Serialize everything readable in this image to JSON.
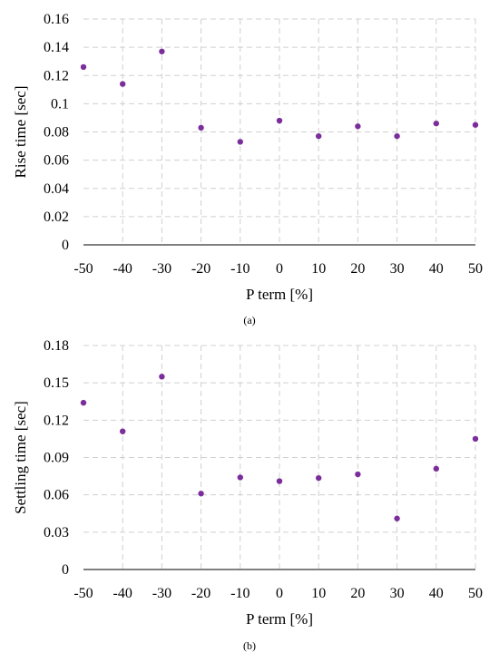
{
  "chart_data": [
    {
      "type": "scatter",
      "caption": "(a)",
      "xlabel": "P term [%]",
      "ylabel": "Rise time [sec]",
      "xlim": [
        -50,
        50
      ],
      "ylim": [
        0,
        0.16
      ],
      "x_ticks": [
        "-50",
        "-40",
        "-30",
        "-20",
        "-10",
        "0",
        "10",
        "20",
        "30",
        "40",
        "50"
      ],
      "y_ticks": [
        "0",
        "0.02",
        "0.04",
        "0.06",
        "0.08",
        "0.1",
        "0.12",
        "0.14",
        "0.16"
      ],
      "grid": true,
      "marker_color": "#7B2D9B",
      "x": [
        -50,
        -40,
        -30,
        -20,
        -10,
        0,
        10,
        20,
        30,
        40,
        50
      ],
      "y": [
        0.126,
        0.114,
        0.137,
        0.083,
        0.073,
        0.088,
        0.077,
        0.084,
        0.077,
        0.086,
        0.085
      ]
    },
    {
      "type": "scatter",
      "caption": "(b)",
      "xlabel": "P term [%]",
      "ylabel": "Settling time [sec]",
      "xlim": [
        -50,
        50
      ],
      "ylim": [
        0,
        0.18
      ],
      "x_ticks": [
        "-50",
        "-40",
        "-30",
        "-20",
        "-10",
        "0",
        "10",
        "20",
        "30",
        "40",
        "50"
      ],
      "y_ticks": [
        "0",
        "0.03",
        "0.06",
        "0.09",
        "0.12",
        "0.15",
        "0.18"
      ],
      "grid": true,
      "marker_color": "#7B2D9B",
      "x": [
        -50,
        -40,
        -30,
        -20,
        -10,
        0,
        10,
        20,
        30,
        40,
        50
      ],
      "y": [
        0.134,
        0.111,
        0.155,
        0.061,
        0.074,
        0.071,
        0.0735,
        0.0765,
        0.041,
        0.081,
        0.105
      ]
    }
  ]
}
